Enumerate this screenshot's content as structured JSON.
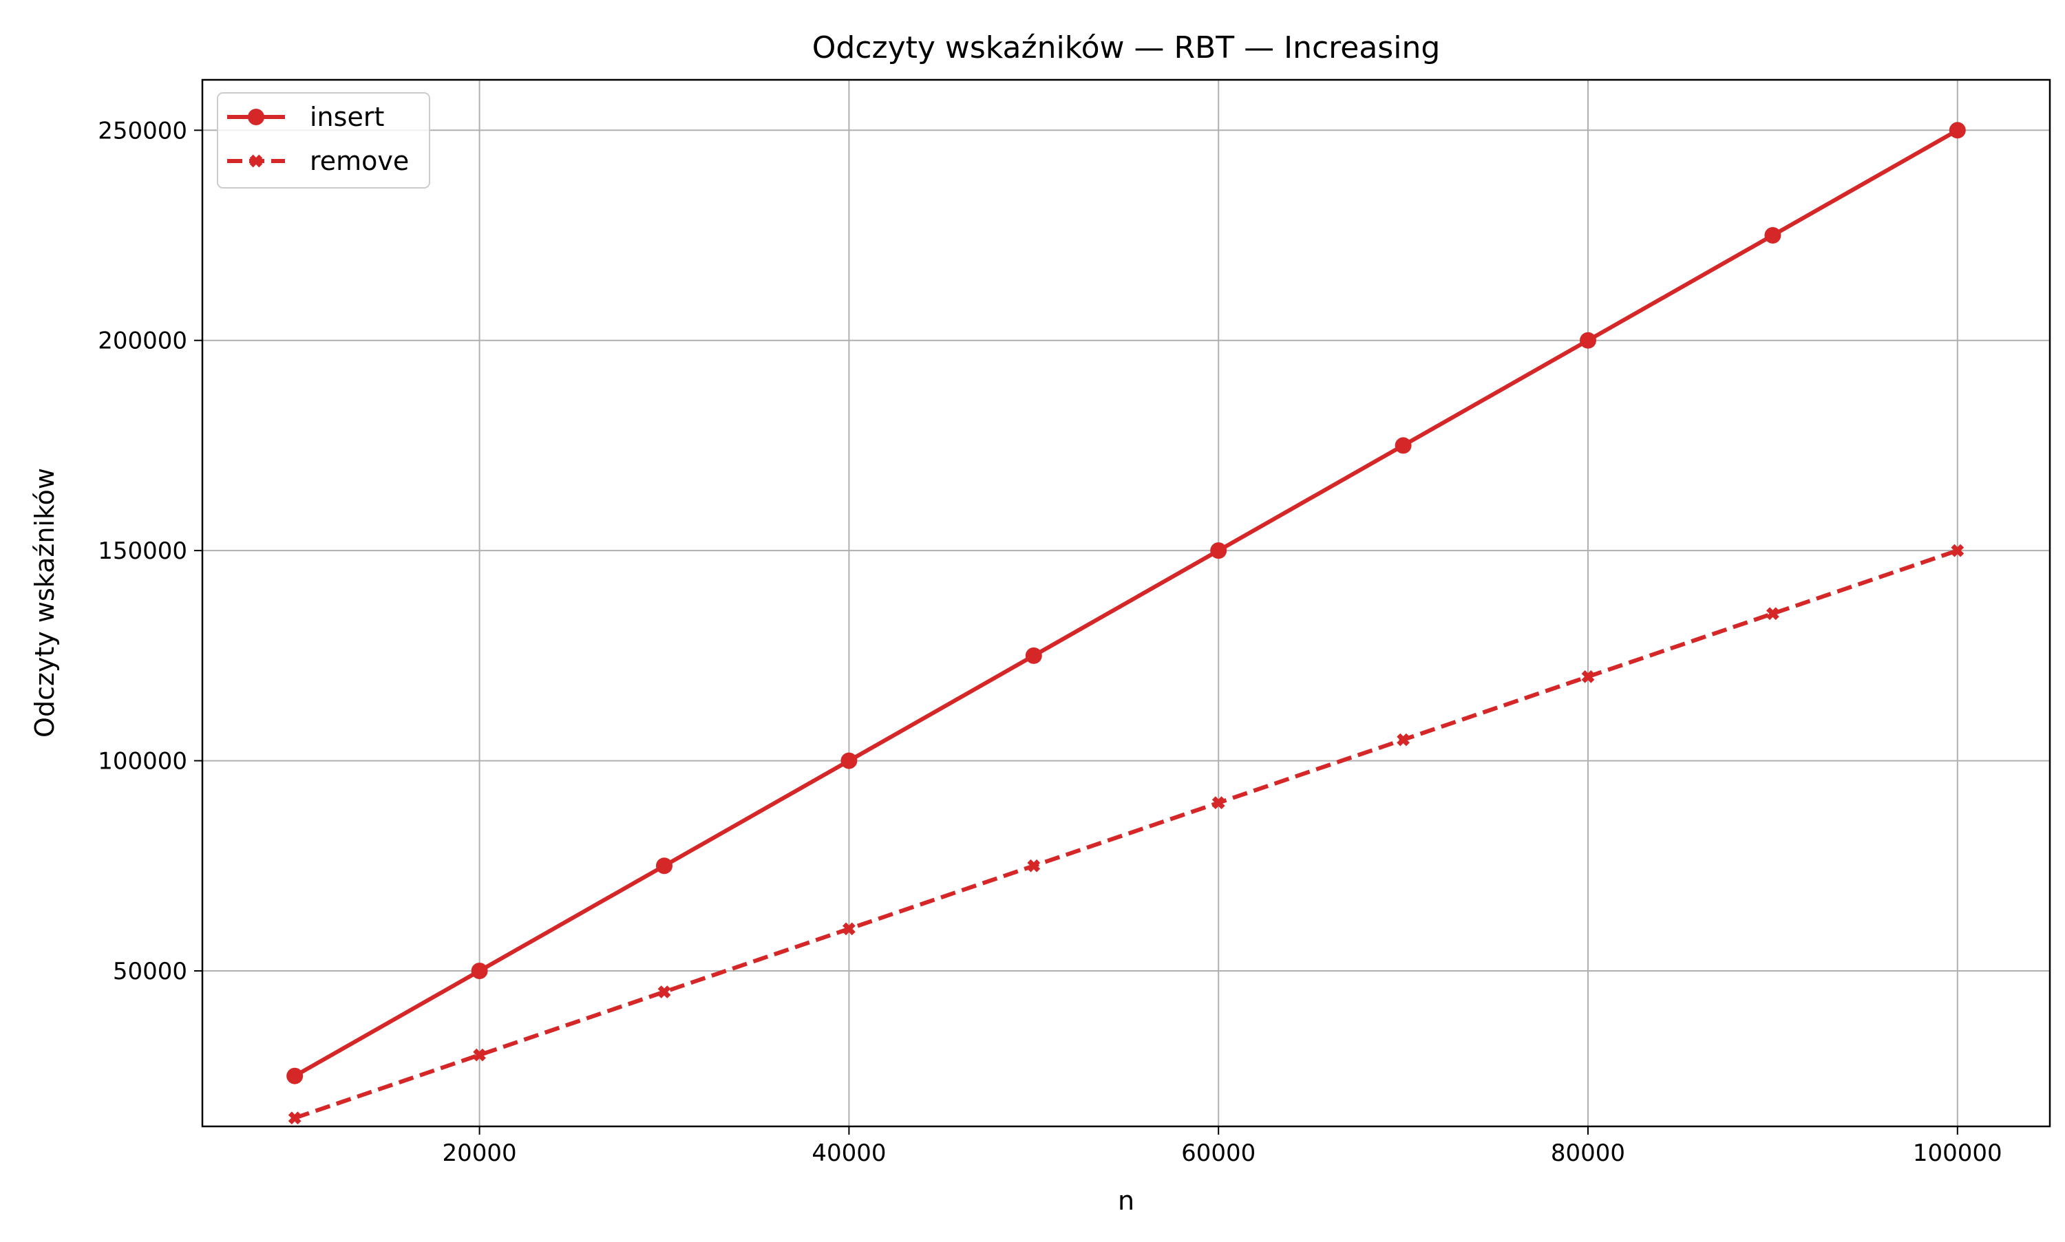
{
  "chart_data": {
    "type": "line",
    "title": "Odczyty wskaźników — RBT — Increasing",
    "xlabel": "n",
    "ylabel": "Odczyty wskaźników",
    "x": [
      10000,
      20000,
      30000,
      40000,
      50000,
      60000,
      70000,
      80000,
      90000,
      100000
    ],
    "xlim": [
      5000,
      105000
    ],
    "ylim": [
      13000,
      262000
    ],
    "xticks": [
      "20000",
      "40000",
      "60000",
      "80000",
      "100000"
    ],
    "yticks": [
      "50000",
      "100000",
      "150000",
      "200000",
      "250000"
    ],
    "grid": true,
    "legend_position": "top-left",
    "series": [
      {
        "name": "insert",
        "values": [
          25000,
          50000,
          75000,
          100000,
          125000,
          150000,
          175000,
          200000,
          225000,
          250000
        ],
        "color": "#d62728",
        "line_style": "solid",
        "marker": "circle"
      },
      {
        "name": "remove",
        "values": [
          15000,
          30000,
          45000,
          60000,
          75000,
          90000,
          105000,
          120000,
          135000,
          150000
        ],
        "color": "#d62728",
        "line_style": "dashed",
        "marker": "x-filled"
      }
    ]
  }
}
